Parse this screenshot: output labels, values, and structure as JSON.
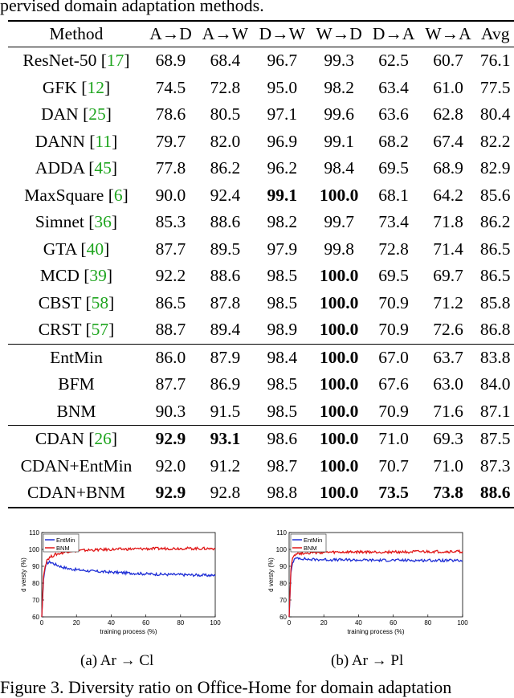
{
  "top_caption": "pervised domain adaptation methods.",
  "table": {
    "headers": [
      "Method",
      "A→D",
      "A→W",
      "D→W",
      "W→D",
      "D→A",
      "W→A",
      "Avg"
    ],
    "groups": [
      [
        {
          "method": "ResNet-50",
          "cite": "17",
          "vals": [
            "68.9",
            "68.4",
            "96.7",
            "99.3",
            "62.5",
            "60.7",
            "76.1"
          ],
          "bold": []
        },
        {
          "method": "GFK",
          "cite": "12",
          "vals": [
            "74.5",
            "72.8",
            "95.0",
            "98.2",
            "63.4",
            "61.0",
            "77.5"
          ],
          "bold": []
        },
        {
          "method": "DAN",
          "cite": "25",
          "vals": [
            "78.6",
            "80.5",
            "97.1",
            "99.6",
            "63.6",
            "62.8",
            "80.4"
          ],
          "bold": []
        },
        {
          "method": "DANN",
          "cite": "11",
          "vals": [
            "79.7",
            "82.0",
            "96.9",
            "99.1",
            "68.2",
            "67.4",
            "82.2"
          ],
          "bold": []
        },
        {
          "method": "ADDA",
          "cite": "45",
          "vals": [
            "77.8",
            "86.2",
            "96.2",
            "98.4",
            "69.5",
            "68.9",
            "82.9"
          ],
          "bold": []
        },
        {
          "method": "MaxSquare",
          "cite": "6",
          "vals": [
            "90.0",
            "92.4",
            "99.1",
            "100.0",
            "68.1",
            "64.2",
            "85.6"
          ],
          "bold": [
            2,
            3
          ]
        },
        {
          "method": "Simnet",
          "cite": "36",
          "vals": [
            "85.3",
            "88.6",
            "98.2",
            "99.7",
            "73.4",
            "71.8",
            "86.2"
          ],
          "bold": []
        },
        {
          "method": "GTA",
          "cite": "40",
          "vals": [
            "87.7",
            "89.5",
            "97.9",
            "99.8",
            "72.8",
            "71.4",
            "86.5"
          ],
          "bold": []
        },
        {
          "method": "MCD",
          "cite": "39",
          "vals": [
            "92.2",
            "88.6",
            "98.5",
            "100.0",
            "69.5",
            "69.7",
            "86.5"
          ],
          "bold": [
            3
          ]
        },
        {
          "method": "CBST",
          "cite": "58",
          "vals": [
            "86.5",
            "87.8",
            "98.5",
            "100.0",
            "70.9",
            "71.2",
            "85.8"
          ],
          "bold": [
            3
          ]
        },
        {
          "method": "CRST",
          "cite": "57",
          "vals": [
            "88.7",
            "89.4",
            "98.9",
            "100.0",
            "70.9",
            "72.6",
            "86.8"
          ],
          "bold": [
            3
          ]
        }
      ],
      [
        {
          "method": "EntMin",
          "cite": "",
          "vals": [
            "86.0",
            "87.9",
            "98.4",
            "100.0",
            "67.0",
            "63.7",
            "83.8"
          ],
          "bold": [
            3
          ]
        },
        {
          "method": "BFM",
          "cite": "",
          "vals": [
            "87.7",
            "86.9",
            "98.5",
            "100.0",
            "67.6",
            "63.0",
            "84.0"
          ],
          "bold": [
            3
          ]
        },
        {
          "method": "BNM",
          "cite": "",
          "vals": [
            "90.3",
            "91.5",
            "98.5",
            "100.0",
            "70.9",
            "71.6",
            "87.1"
          ],
          "bold": [
            3
          ]
        }
      ],
      [
        {
          "method": "CDAN",
          "cite": "26",
          "vals": [
            "92.9",
            "93.1",
            "98.6",
            "100.0",
            "71.0",
            "69.3",
            "87.5"
          ],
          "bold": [
            0,
            1,
            3
          ]
        },
        {
          "method": "CDAN+EntMin",
          "cite": "",
          "vals": [
            "92.0",
            "91.2",
            "98.7",
            "100.0",
            "70.7",
            "71.0",
            "87.3"
          ],
          "bold": [
            3
          ]
        },
        {
          "method": "CDAN+BNM",
          "cite": "",
          "vals": [
            "92.9",
            "92.8",
            "98.8",
            "100.0",
            "73.5",
            "73.8",
            "88.6"
          ],
          "bold": [
            0,
            3,
            4,
            5,
            6
          ]
        }
      ]
    ]
  },
  "chart_data": [
    {
      "type": "line",
      "xlabel": "training process (%)",
      "ylabel": "d versty (%)",
      "xlim": [
        0,
        100
      ],
      "ylim": [
        60,
        110
      ],
      "xticks": [
        "0",
        "20",
        "40",
        "60",
        "80",
        "100"
      ],
      "yticks": [
        "60",
        "70",
        "80",
        "90",
        "100",
        "110"
      ],
      "legend_position": "top-left",
      "colors": {
        "EntMin": "#1f2fd6",
        "BNM": "#e01515"
      },
      "series": [
        {
          "name": "EntMin",
          "x": [
            0,
            1,
            2,
            3,
            5,
            8,
            12,
            16,
            20,
            25,
            30,
            40,
            50,
            60,
            70,
            80,
            90,
            100
          ],
          "values": [
            60,
            82,
            89,
            92,
            92.5,
            91,
            89.5,
            88.5,
            88,
            87.5,
            87,
            86.5,
            86,
            85.5,
            85.2,
            85,
            84.8,
            84.5
          ]
        },
        {
          "name": "BNM",
          "x": [
            0,
            1,
            2,
            3,
            5,
            8,
            12,
            16,
            20,
            25,
            30,
            40,
            50,
            60,
            70,
            80,
            90,
            100
          ],
          "values": [
            60,
            84,
            90,
            94,
            95.5,
            97,
            98,
            99,
            99.2,
            99.5,
            99.7,
            100,
            100.2,
            100.4,
            100.5,
            100.6,
            100.5,
            100.5
          ]
        }
      ]
    },
    {
      "type": "line",
      "xlabel": "training process (%)",
      "ylabel": "d versty (%)",
      "xlim": [
        0,
        100
      ],
      "ylim": [
        60,
        110
      ],
      "xticks": [
        "0",
        "20",
        "40",
        "60",
        "80",
        "100"
      ],
      "yticks": [
        "60",
        "70",
        "80",
        "90",
        "100",
        "110"
      ],
      "legend_position": "top-left",
      "colors": {
        "EntMin": "#1f2fd6",
        "BNM": "#e01515"
      },
      "series": [
        {
          "name": "EntMin",
          "x": [
            0,
            1,
            2,
            3,
            5,
            8,
            12,
            16,
            20,
            25,
            30,
            40,
            50,
            60,
            70,
            80,
            90,
            100
          ],
          "values": [
            60,
            86,
            92,
            94,
            95,
            94.5,
            94,
            94,
            94,
            93.8,
            93.8,
            93.7,
            93.6,
            93.6,
            93.5,
            93.5,
            93.4,
            93.3
          ]
        },
        {
          "name": "BNM",
          "x": [
            0,
            1,
            2,
            3,
            5,
            8,
            12,
            16,
            20,
            25,
            30,
            40,
            50,
            60,
            70,
            80,
            90,
            100
          ],
          "values": [
            60,
            88,
            95,
            97,
            97.5,
            97.8,
            98,
            98,
            98.2,
            98.2,
            98.3,
            98.4,
            98.4,
            98.5,
            98.5,
            98.6,
            98.6,
            98.7
          ]
        }
      ]
    }
  ],
  "subcaptions": [
    "(a)  Ar → Cl",
    "(b)  Ar → Pl"
  ],
  "figure_caption": "Figure 3. Diversity ratio on Office-Home for domain adaptation"
}
